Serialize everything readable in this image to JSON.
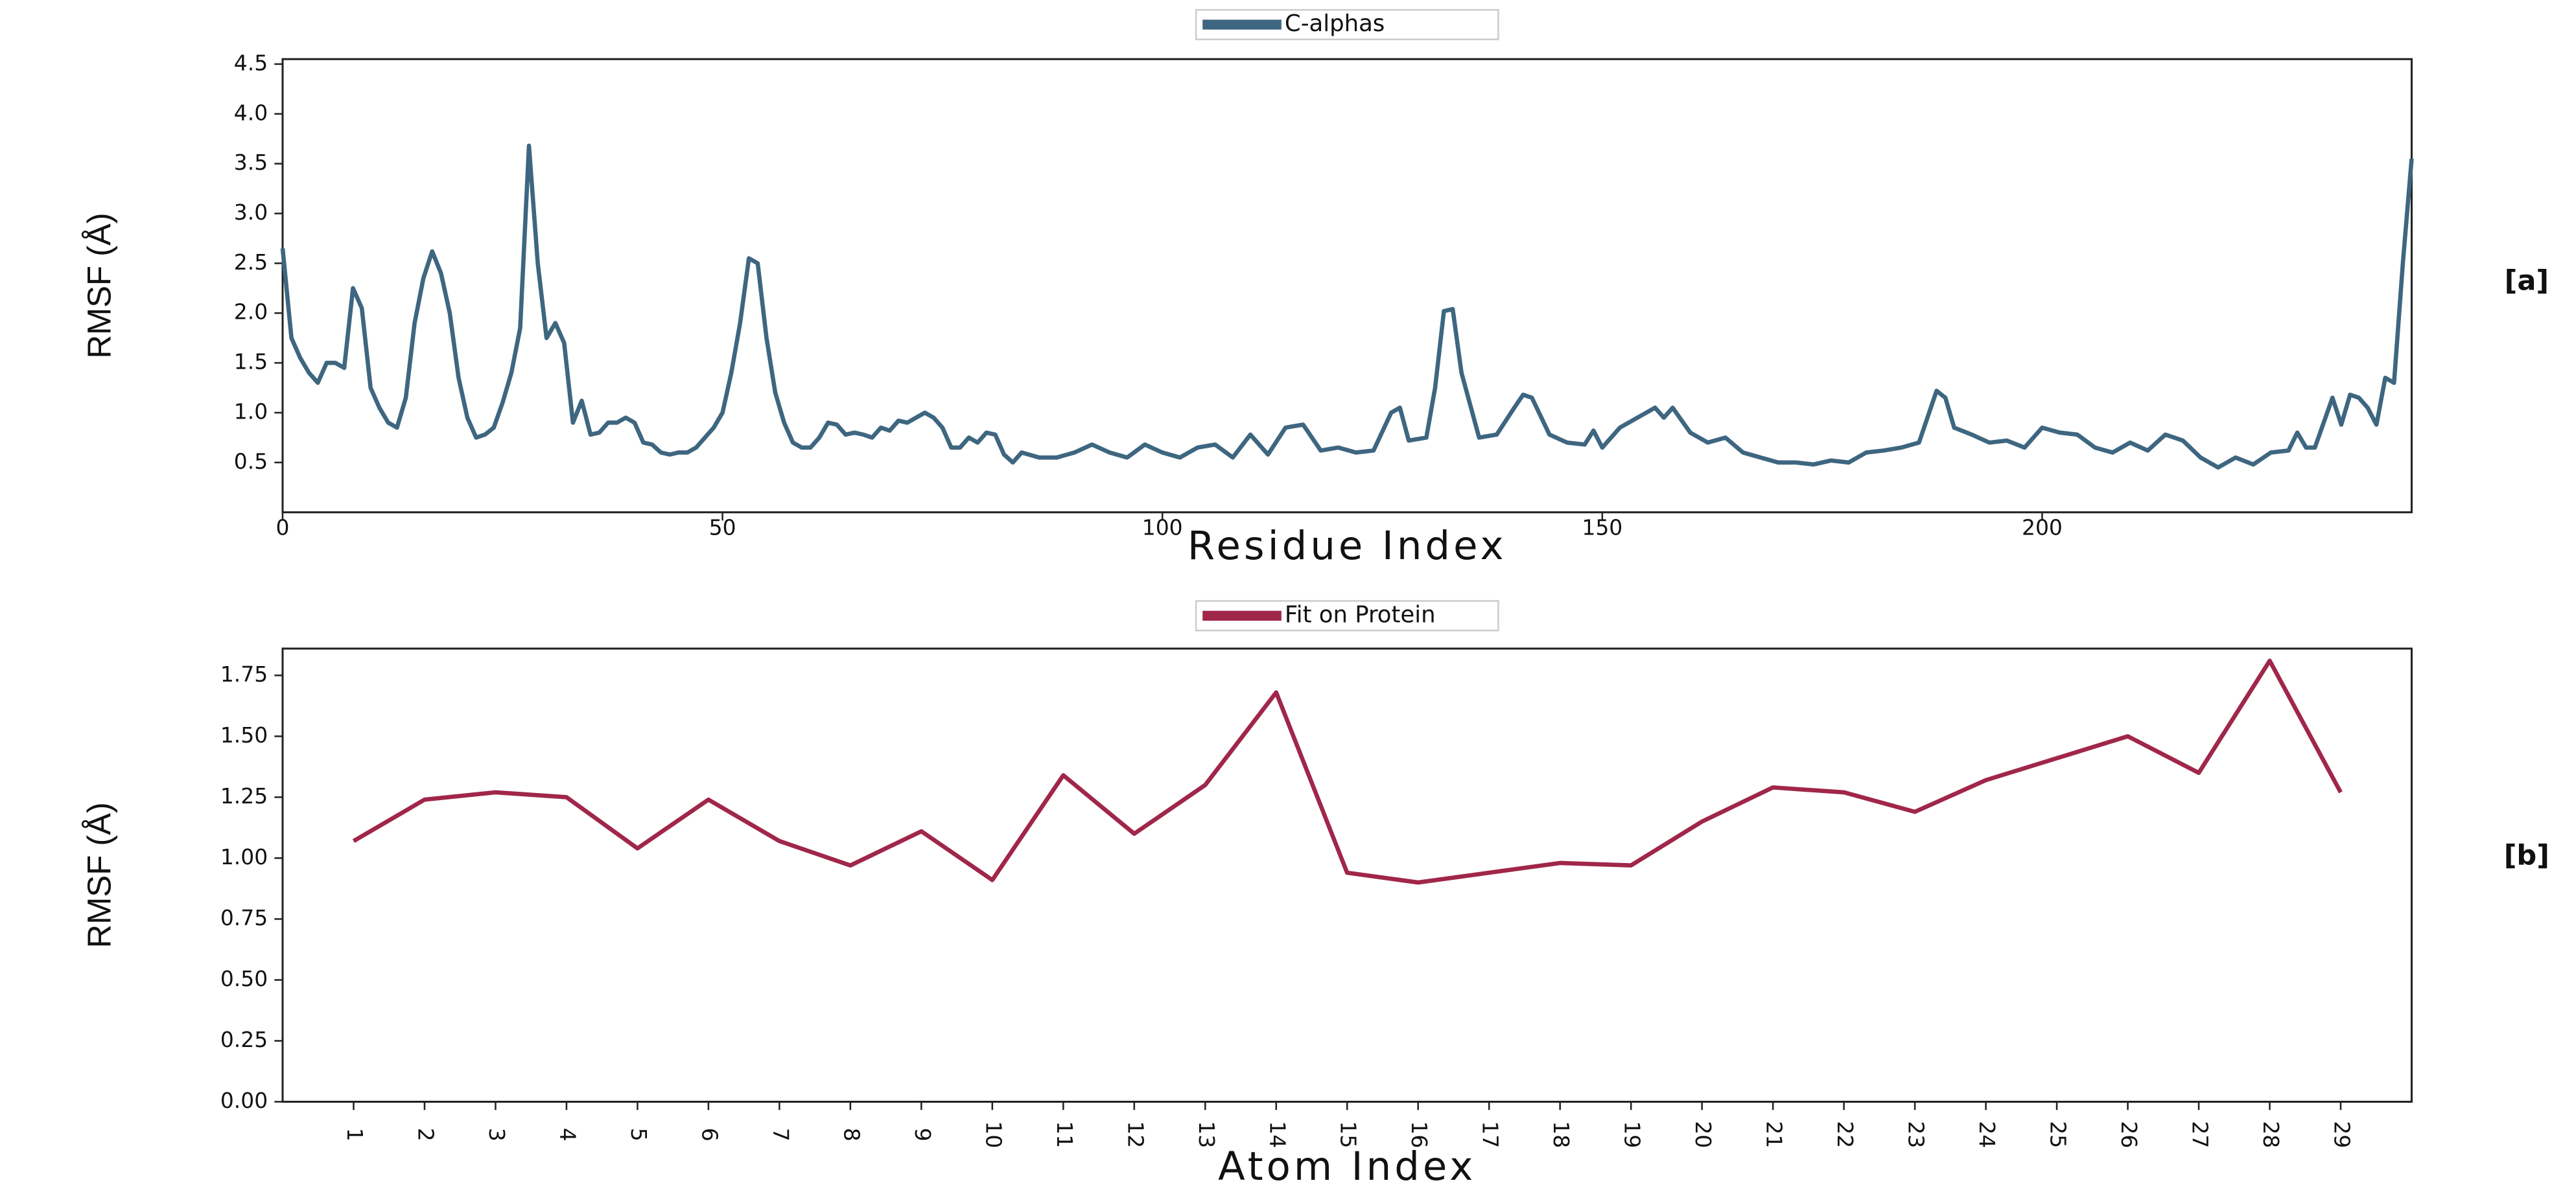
{
  "chart_data": [
    {
      "type": "line",
      "panel_label": "[a]",
      "x_label": "Residue Index",
      "y_label": "RMSF (Å)",
      "xlim": [
        0,
        242
      ],
      "ylim": [
        0,
        4.55
      ],
      "xticks": [
        0,
        50,
        100,
        150,
        200
      ],
      "yticks": [
        0.5,
        {
          "value": 1.0,
          "label": "1.0"
        },
        1.5,
        {
          "value": 2.0,
          "label": "2.0"
        },
        2.5,
        {
          "value": 3.0,
          "label": "3.0"
        },
        3.5,
        {
          "value": 4.0,
          "label": "4.0"
        },
        4.5
      ],
      "legend": "upper center",
      "x": [
        0,
        1,
        2,
        3,
        4,
        5,
        6,
        7,
        8,
        9,
        10,
        11,
        12,
        13,
        14,
        15,
        16,
        17,
        18,
        19,
        20,
        21,
        22,
        23,
        24,
        25,
        26,
        27,
        28,
        29,
        30,
        31,
        32,
        33,
        34,
        35,
        36,
        37,
        38,
        39,
        40,
        41,
        42,
        43,
        44,
        45,
        46,
        47,
        48,
        49,
        50,
        51,
        52,
        53,
        54,
        55,
        56,
        57,
        58,
        59,
        60,
        61,
        62,
        63,
        64,
        65,
        66,
        67,
        68,
        69,
        70,
        71,
        72,
        73,
        74,
        75,
        76,
        77,
        78,
        79,
        80,
        81,
        82,
        83,
        84,
        86,
        88,
        90,
        92,
        94,
        96,
        98,
        100,
        102,
        104,
        106,
        108,
        110,
        112,
        114,
        116,
        118,
        120,
        122,
        124,
        126,
        127,
        128,
        130,
        131,
        132,
        133,
        134,
        136,
        138,
        140,
        141,
        142,
        144,
        146,
        148,
        149,
        150,
        152,
        154,
        156,
        157,
        158,
        160,
        162,
        164,
        166,
        168,
        170,
        172,
        174,
        176,
        178,
        180,
        182,
        184,
        186,
        188,
        189,
        190,
        192,
        194,
        196,
        198,
        200,
        202,
        204,
        206,
        208,
        210,
        212,
        214,
        216,
        218,
        220,
        222,
        224,
        226,
        228,
        229,
        230,
        231,
        232,
        233,
        234,
        235,
        236,
        237,
        238,
        239,
        240,
        241,
        242
      ],
      "series": [
        {
          "name": "C-alphas",
          "color": "#3e6680",
          "values": [
            2.65,
            1.75,
            1.55,
            1.4,
            1.3,
            1.5,
            1.5,
            1.45,
            2.25,
            2.05,
            1.25,
            1.05,
            0.9,
            0.85,
            1.15,
            1.9,
            2.35,
            2.62,
            2.4,
            2.0,
            1.35,
            0.95,
            0.75,
            0.78,
            0.85,
            1.1,
            1.4,
            1.85,
            3.68,
            2.5,
            1.75,
            1.9,
            1.7,
            0.9,
            1.12,
            0.78,
            0.8,
            0.9,
            0.9,
            0.95,
            0.9,
            0.7,
            0.68,
            0.6,
            0.58,
            0.6,
            0.6,
            0.65,
            0.75,
            0.85,
            1.0,
            1.4,
            1.9,
            2.55,
            2.5,
            1.75,
            1.2,
            0.9,
            0.7,
            0.65,
            0.65,
            0.75,
            0.9,
            0.88,
            0.78,
            0.8,
            0.78,
            0.75,
            0.85,
            0.82,
            0.92,
            0.9,
            0.95,
            1.0,
            0.95,
            0.85,
            0.65,
            0.65,
            0.75,
            0.7,
            0.8,
            0.78,
            0.58,
            0.5,
            0.6,
            0.55,
            0.55,
            0.6,
            0.68,
            0.6,
            0.55,
            0.68,
            0.6,
            0.55,
            0.65,
            0.68,
            0.55,
            0.78,
            0.58,
            0.85,
            0.88,
            0.62,
            0.65,
            0.6,
            0.62,
            1.0,
            1.05,
            0.72,
            0.75,
            1.25,
            2.02,
            2.04,
            1.4,
            0.75,
            0.78,
            1.05,
            1.18,
            1.15,
            0.78,
            0.7,
            0.68,
            0.82,
            0.65,
            0.85,
            0.95,
            1.05,
            0.95,
            1.05,
            0.8,
            0.7,
            0.75,
            0.6,
            0.55,
            0.5,
            0.5,
            0.48,
            0.52,
            0.5,
            0.6,
            0.62,
            0.65,
            0.7,
            1.22,
            1.15,
            0.85,
            0.78,
            0.7,
            0.72,
            0.65,
            0.85,
            0.8,
            0.78,
            0.65,
            0.6,
            0.7,
            0.62,
            0.78,
            0.72,
            0.55,
            0.45,
            0.55,
            0.48,
            0.6,
            0.62,
            0.8,
            0.65,
            0.65,
            0.9,
            1.15,
            0.88,
            1.18,
            1.15,
            1.05,
            0.88,
            1.35,
            1.3,
            2.5,
            3.55
          ]
        }
      ]
    },
    {
      "type": "line",
      "panel_label": "[b]",
      "x_label": "Atom Index",
      "y_label": "RMSF (Å)",
      "ylim": [
        0,
        1.86
      ],
      "yticks": [
        {
          "value": 0.0,
          "label": "0.00"
        },
        0.25,
        {
          "value": 0.5,
          "label": "0.50"
        },
        0.75,
        {
          "value": 1.0,
          "label": "1.00"
        },
        1.25,
        {
          "value": 1.5,
          "label": "1.50"
        },
        1.75
      ],
      "legend": "upper center",
      "categories": [
        "1",
        "2",
        "3",
        "4",
        "5",
        "6",
        "7",
        "8",
        "9",
        "10",
        "11",
        "12",
        "13",
        "14",
        "15",
        "16",
        "17",
        "18",
        "19",
        "20",
        "21",
        "22",
        "23",
        "24",
        "25",
        "26",
        "27",
        "28",
        "29"
      ],
      "series": [
        {
          "name": "Fit on Protein",
          "color": "#a0264a",
          "values": [
            1.07,
            1.24,
            1.27,
            1.25,
            1.04,
            1.24,
            1.07,
            0.97,
            1.11,
            0.91,
            1.34,
            1.1,
            1.3,
            1.68,
            0.94,
            0.9,
            0.94,
            0.98,
            0.97,
            1.15,
            1.29,
            1.27,
            1.19,
            1.32,
            1.41,
            1.5,
            1.35,
            1.81,
            1.27
          ]
        }
      ]
    }
  ]
}
